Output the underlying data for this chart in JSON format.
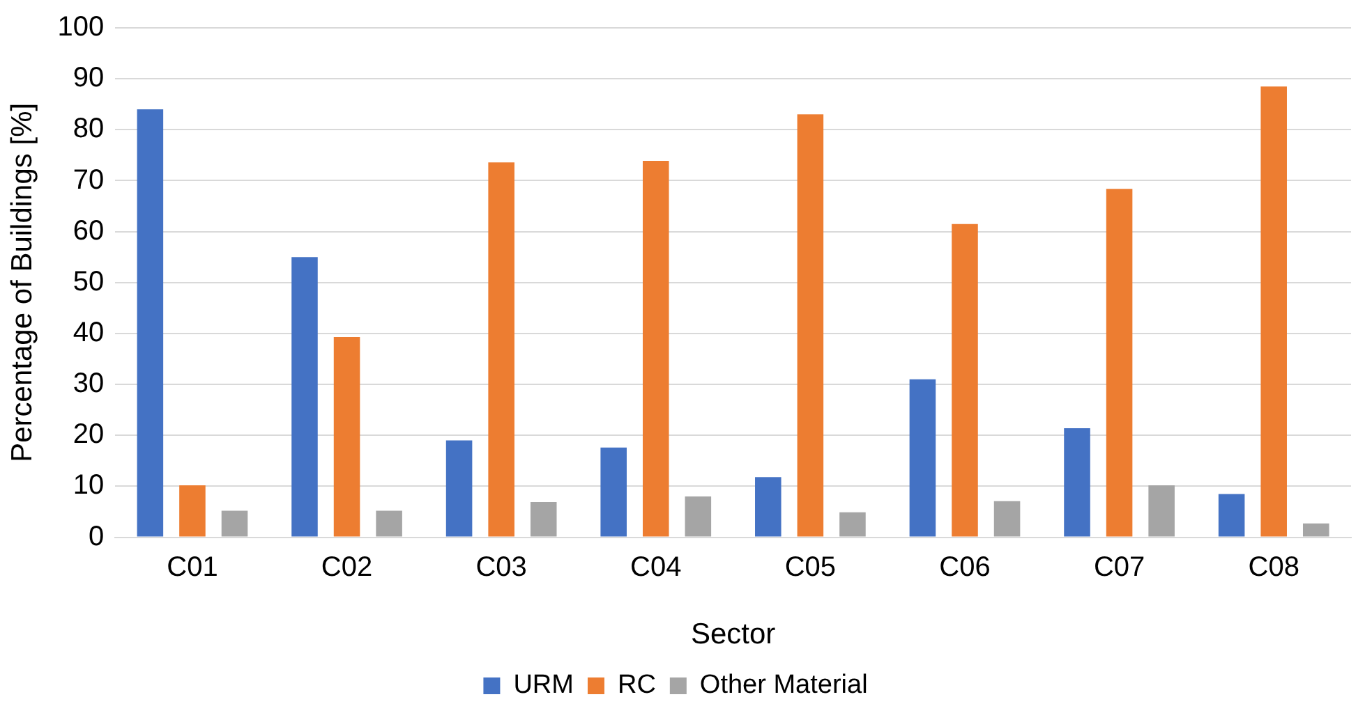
{
  "chart_data": {
    "type": "bar",
    "xlabel": "Sector",
    "ylabel": "Percentage of Buildings [%]",
    "categories": [
      "C01",
      "C02",
      "C03",
      "C04",
      "C05",
      "C06",
      "C07",
      "C08"
    ],
    "series": [
      {
        "name": "URM",
        "color": "#4472c4",
        "values": [
          84,
          55,
          19,
          17.6,
          11.8,
          31,
          21.4,
          8.5
        ]
      },
      {
        "name": "RC",
        "color": "#ed7d31",
        "values": [
          10.2,
          39.3,
          73.6,
          73.9,
          83,
          61.5,
          68.4,
          88.5
        ]
      },
      {
        "name": "Other Material",
        "color": "#a5a5a5",
        "values": [
          5.2,
          5.2,
          6.9,
          8,
          4.9,
          7.1,
          10.2,
          2.7
        ]
      }
    ],
    "ylim": [
      0,
      100
    ],
    "yticks": [
      0,
      10,
      20,
      30,
      40,
      50,
      60,
      70,
      80,
      90,
      100
    ],
    "grid": "y",
    "legend": "bottom"
  }
}
